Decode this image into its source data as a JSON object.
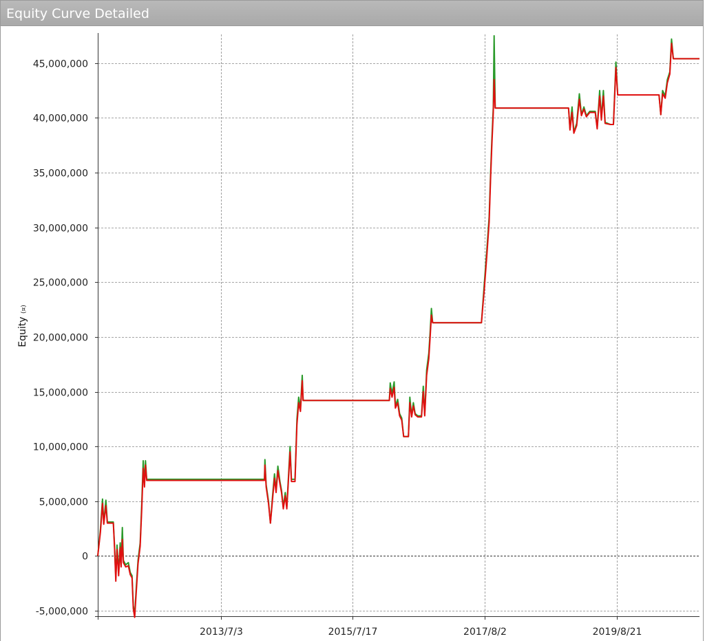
{
  "window": {
    "title": "Equity Curve Detailed"
  },
  "chart_data": {
    "type": "line",
    "title": "",
    "ylabel": "Equity",
    "ylabel_unit": "(¤)",
    "xlabel": "",
    "ylim": [
      -5500000,
      47500000
    ],
    "y_ticks": [
      -5000000,
      0,
      5000000,
      10000000,
      15000000,
      20000000,
      25000000,
      30000000,
      35000000,
      40000000,
      45000000
    ],
    "y_tick_labels": [
      "-5,000,000",
      "0",
      "5,000,000",
      "10,000,000",
      "15,000,000",
      "20,000,000",
      "25,000,000",
      "30,000,000",
      "35,000,000",
      "40,000,000",
      "45,000,000"
    ],
    "x_ticks": [
      "2013-07-03",
      "2015-07-17",
      "2017-08-02",
      "2019-08-21"
    ],
    "x_tick_labels": [
      "2013/7/3",
      "2015/7/17",
      "2017/8/2",
      "2019/8/21"
    ],
    "xlim": [
      "2011-08-05",
      "2020-11-30"
    ],
    "grid": true,
    "series": [
      {
        "color": "#2a9a2a",
        "points": [
          [
            "2011-08-05",
            0
          ],
          [
            "2011-08-20",
            2500000
          ],
          [
            "2011-09-01",
            5200000
          ],
          [
            "2011-09-08",
            3000000
          ],
          [
            "2011-09-20",
            5100000
          ],
          [
            "2011-09-28",
            3100000
          ],
          [
            "2011-11-01",
            3100000
          ],
          [
            "2011-11-08",
            900000
          ],
          [
            "2011-11-15",
            -2000000
          ],
          [
            "2011-11-22",
            1000000
          ],
          [
            "2011-12-01",
            -1500000
          ],
          [
            "2011-12-10",
            1200000
          ],
          [
            "2011-12-15",
            -800000
          ],
          [
            "2011-12-22",
            2600000
          ],
          [
            "2011-12-28",
            -400000
          ],
          [
            "2012-01-10",
            -800000
          ],
          [
            "2012-01-25",
            -600000
          ],
          [
            "2012-02-05",
            -1500000
          ],
          [
            "2012-02-15",
            -1800000
          ],
          [
            "2012-02-22",
            -4500000
          ],
          [
            "2012-03-01",
            -5400000
          ],
          [
            "2012-03-10",
            -2800000
          ],
          [
            "2012-03-20",
            -400000
          ],
          [
            "2012-04-01",
            1200000
          ],
          [
            "2012-04-10",
            4800000
          ],
          [
            "2012-04-18",
            8700000
          ],
          [
            "2012-04-25",
            6500000
          ],
          [
            "2012-05-01",
            8700000
          ],
          [
            "2012-05-08",
            7000000
          ],
          [
            "2014-03-05",
            7000000
          ],
          [
            "2014-03-08",
            8800000
          ],
          [
            "2014-03-15",
            6500000
          ],
          [
            "2014-03-28",
            5000000
          ],
          [
            "2014-04-08",
            3000000
          ],
          [
            "2014-04-20",
            5500000
          ],
          [
            "2014-05-01",
            7500000
          ],
          [
            "2014-05-10",
            6000000
          ],
          [
            "2014-05-20",
            8200000
          ],
          [
            "2014-06-01",
            6800000
          ],
          [
            "2014-06-10",
            6000000
          ],
          [
            "2014-06-20",
            4500000
          ],
          [
            "2014-07-01",
            5800000
          ],
          [
            "2014-07-10",
            4500000
          ],
          [
            "2014-07-20",
            7500000
          ],
          [
            "2014-07-28",
            10000000
          ],
          [
            "2014-08-05",
            7000000
          ],
          [
            "2014-08-25",
            7000000
          ],
          [
            "2014-09-05",
            12500000
          ],
          [
            "2014-09-15",
            14500000
          ],
          [
            "2014-09-25",
            13500000
          ],
          [
            "2014-10-05",
            16500000
          ],
          [
            "2014-10-10",
            14200000
          ],
          [
            "2016-02-10",
            14200000
          ],
          [
            "2016-02-15",
            15800000
          ],
          [
            "2016-02-25",
            14800000
          ],
          [
            "2016-03-08",
            15900000
          ],
          [
            "2016-03-15",
            13700000
          ],
          [
            "2016-03-28",
            14300000
          ],
          [
            "2016-04-08",
            13000000
          ],
          [
            "2016-04-20",
            12600000
          ],
          [
            "2016-05-01",
            10900000
          ],
          [
            "2016-05-28",
            10900000
          ],
          [
            "2016-06-05",
            14500000
          ],
          [
            "2016-06-15",
            12800000
          ],
          [
            "2016-06-25",
            14000000
          ],
          [
            "2016-07-05",
            13000000
          ],
          [
            "2016-07-20",
            12800000
          ],
          [
            "2016-08-10",
            12800000
          ],
          [
            "2016-08-20",
            15500000
          ],
          [
            "2016-08-28",
            12900000
          ],
          [
            "2016-09-08",
            17000000
          ],
          [
            "2016-09-20",
            18500000
          ],
          [
            "2016-09-28",
            20500000
          ],
          [
            "2016-10-05",
            22600000
          ],
          [
            "2016-10-12",
            21300000
          ],
          [
            "2017-07-15",
            21300000
          ],
          [
            "2017-08-01",
            25000000
          ],
          [
            "2017-08-15",
            28000000
          ],
          [
            "2017-08-28",
            31000000
          ],
          [
            "2017-09-05",
            35000000
          ],
          [
            "2017-09-12",
            38000000
          ],
          [
            "2017-09-20",
            41000000
          ],
          [
            "2017-09-25",
            47500000
          ],
          [
            "2017-10-01",
            40900000
          ],
          [
            "2018-11-20",
            40900000
          ],
          [
            "2018-11-28",
            39000000
          ],
          [
            "2018-12-10",
            41000000
          ],
          [
            "2018-12-20",
            38700000
          ],
          [
            "2019-01-05",
            39500000
          ],
          [
            "2019-01-20",
            42200000
          ],
          [
            "2019-02-01",
            40300000
          ],
          [
            "2019-02-15",
            41000000
          ],
          [
            "2019-03-01",
            40200000
          ],
          [
            "2019-03-20",
            40600000
          ],
          [
            "2019-04-20",
            40600000
          ],
          [
            "2019-05-01",
            39100000
          ],
          [
            "2019-05-15",
            42500000
          ],
          [
            "2019-05-25",
            40000000
          ],
          [
            "2019-06-05",
            42500000
          ],
          [
            "2019-06-15",
            39600000
          ],
          [
            "2019-07-15",
            39400000
          ],
          [
            "2019-08-01",
            39400000
          ],
          [
            "2019-08-15",
            45100000
          ],
          [
            "2019-08-25",
            42100000
          ],
          [
            "2020-04-15",
            42100000
          ],
          [
            "2020-04-25",
            40300000
          ],
          [
            "2020-05-05",
            42500000
          ],
          [
            "2020-05-20",
            42000000
          ],
          [
            "2020-06-01",
            43500000
          ],
          [
            "2020-06-15",
            44200000
          ],
          [
            "2020-06-25",
            47200000
          ],
          [
            "2020-07-05",
            45400000
          ],
          [
            "2020-11-30",
            45400000
          ]
        ]
      },
      {
        "color": "#e01010",
        "points": [
          [
            "2011-08-05",
            0
          ],
          [
            "2011-08-20",
            2200000
          ],
          [
            "2011-09-01",
            4800000
          ],
          [
            "2011-09-08",
            2900000
          ],
          [
            "2011-09-20",
            4600000
          ],
          [
            "2011-09-28",
            3000000
          ],
          [
            "2011-11-01",
            3000000
          ],
          [
            "2011-11-08",
            700000
          ],
          [
            "2011-11-15",
            -2300000
          ],
          [
            "2011-11-22",
            600000
          ],
          [
            "2011-12-01",
            -1800000
          ],
          [
            "2011-12-10",
            800000
          ],
          [
            "2011-12-15",
            -1000000
          ],
          [
            "2011-12-22",
            1500000
          ],
          [
            "2011-12-28",
            -600000
          ],
          [
            "2012-01-10",
            -1000000
          ],
          [
            "2012-01-25",
            -900000
          ],
          [
            "2012-02-05",
            -1700000
          ],
          [
            "2012-02-15",
            -2000000
          ],
          [
            "2012-02-22",
            -4800000
          ],
          [
            "2012-03-01",
            -5600000
          ],
          [
            "2012-03-10",
            -3200000
          ],
          [
            "2012-03-20",
            -700000
          ],
          [
            "2012-04-01",
            900000
          ],
          [
            "2012-04-10",
            4300000
          ],
          [
            "2012-04-18",
            8000000
          ],
          [
            "2012-04-25",
            6300000
          ],
          [
            "2012-05-01",
            8300000
          ],
          [
            "2012-05-08",
            6900000
          ],
          [
            "2014-03-05",
            6900000
          ],
          [
            "2014-03-08",
            8300000
          ],
          [
            "2014-03-15",
            6300000
          ],
          [
            "2014-03-28",
            4800000
          ],
          [
            "2014-04-08",
            3000000
          ],
          [
            "2014-04-20",
            5200000
          ],
          [
            "2014-05-01",
            7100000
          ],
          [
            "2014-05-10",
            5800000
          ],
          [
            "2014-05-20",
            7800000
          ],
          [
            "2014-06-01",
            6600000
          ],
          [
            "2014-06-10",
            5800000
          ],
          [
            "2014-06-20",
            4300000
          ],
          [
            "2014-07-01",
            5500000
          ],
          [
            "2014-07-10",
            4300000
          ],
          [
            "2014-07-20",
            7200000
          ],
          [
            "2014-07-28",
            9500000
          ],
          [
            "2014-08-05",
            6800000
          ],
          [
            "2014-08-25",
            6800000
          ],
          [
            "2014-09-05",
            12000000
          ],
          [
            "2014-09-15",
            14000000
          ],
          [
            "2014-09-25",
            13200000
          ],
          [
            "2014-10-05",
            16000000
          ],
          [
            "2014-10-10",
            14200000
          ],
          [
            "2016-02-10",
            14200000
          ],
          [
            "2016-02-15",
            15300000
          ],
          [
            "2016-02-25",
            14500000
          ],
          [
            "2016-03-08",
            15400000
          ],
          [
            "2016-03-15",
            13500000
          ],
          [
            "2016-03-28",
            14000000
          ],
          [
            "2016-04-08",
            12800000
          ],
          [
            "2016-04-20",
            12400000
          ],
          [
            "2016-05-01",
            10900000
          ],
          [
            "2016-05-28",
            10900000
          ],
          [
            "2016-06-05",
            14000000
          ],
          [
            "2016-06-15",
            12700000
          ],
          [
            "2016-06-25",
            13700000
          ],
          [
            "2016-07-05",
            12900000
          ],
          [
            "2016-07-20",
            12700000
          ],
          [
            "2016-08-10",
            12700000
          ],
          [
            "2016-08-20",
            15000000
          ],
          [
            "2016-08-28",
            12800000
          ],
          [
            "2016-09-08",
            16500000
          ],
          [
            "2016-09-20",
            18000000
          ],
          [
            "2016-09-28",
            20000000
          ],
          [
            "2016-10-05",
            22000000
          ],
          [
            "2016-10-12",
            21300000
          ],
          [
            "2017-07-15",
            21300000
          ],
          [
            "2017-08-01",
            24500000
          ],
          [
            "2017-08-15",
            27500000
          ],
          [
            "2017-08-28",
            30500000
          ],
          [
            "2017-09-05",
            34500000
          ],
          [
            "2017-09-12",
            37500000
          ],
          [
            "2017-09-20",
            40500000
          ],
          [
            "2017-09-25",
            43500000
          ],
          [
            "2017-10-01",
            40900000
          ],
          [
            "2018-11-20",
            40900000
          ],
          [
            "2018-11-28",
            38900000
          ],
          [
            "2018-12-10",
            40500000
          ],
          [
            "2018-12-20",
            38600000
          ],
          [
            "2019-01-05",
            39300000
          ],
          [
            "2019-01-20",
            41700000
          ],
          [
            "2019-02-01",
            40200000
          ],
          [
            "2019-02-15",
            40800000
          ],
          [
            "2019-03-01",
            40100000
          ],
          [
            "2019-03-20",
            40500000
          ],
          [
            "2019-04-20",
            40500000
          ],
          [
            "2019-05-01",
            39000000
          ],
          [
            "2019-05-15",
            42000000
          ],
          [
            "2019-05-25",
            39800000
          ],
          [
            "2019-06-05",
            42000000
          ],
          [
            "2019-06-15",
            39500000
          ],
          [
            "2019-07-15",
            39400000
          ],
          [
            "2019-08-01",
            39400000
          ],
          [
            "2019-08-15",
            44600000
          ],
          [
            "2019-08-25",
            42100000
          ],
          [
            "2020-04-15",
            42100000
          ],
          [
            "2020-04-25",
            40300000
          ],
          [
            "2020-05-05",
            42200000
          ],
          [
            "2020-05-20",
            41800000
          ],
          [
            "2020-06-01",
            43200000
          ],
          [
            "2020-06-15",
            44000000
          ],
          [
            "2020-06-25",
            46800000
          ],
          [
            "2020-07-05",
            45400000
          ],
          [
            "2020-11-30",
            45400000
          ]
        ]
      }
    ]
  }
}
